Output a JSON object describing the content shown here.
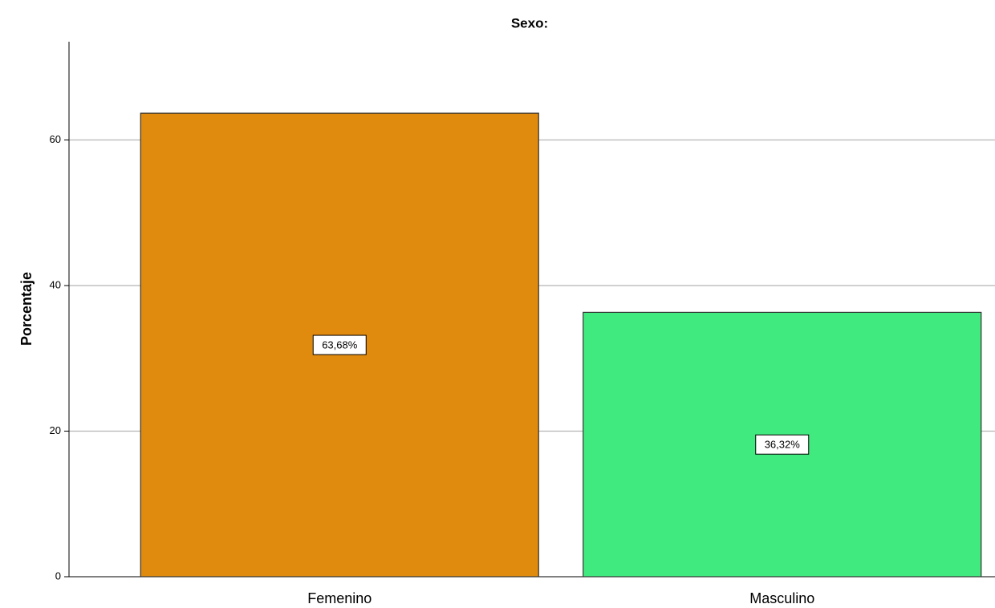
{
  "chart_data": {
    "type": "bar",
    "title": "Sexo:",
    "y_label": "Porcentaje",
    "categories": [
      "Femenino",
      "Masculino"
    ],
    "values": [
      63.68,
      36.32
    ],
    "value_labels": [
      "63,68%",
      "36,32%"
    ],
    "colors": [
      "#e08a0e",
      "#41ea7f"
    ],
    "ylim": [
      0,
      73.5
    ],
    "yticks": [
      0,
      20,
      40,
      60
    ],
    "grid": true
  }
}
